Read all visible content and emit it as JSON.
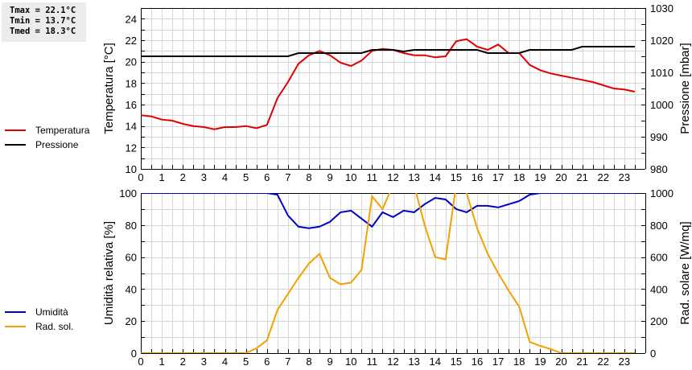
{
  "stats": {
    "tmax": "Tmax = 22.1°C",
    "tmin": "Tmin = 13.7°C",
    "tmed": "Tmed = 18.3°C"
  },
  "legend_top": [
    {
      "label": "Temperatura",
      "color": "#e00000"
    },
    {
      "label": "Pressione",
      "color": "#000000"
    }
  ],
  "legend_bottom": [
    {
      "label": "Umidità",
      "color": "#0000c8"
    },
    {
      "label": "Rad. sol.",
      "color": "#f5a000"
    }
  ],
  "chart_data": [
    {
      "type": "line",
      "title": "",
      "xlabel": "",
      "ylabel": "Temperatura [°C]",
      "y2label": "Pressione [mbar]",
      "xlim": [
        0,
        24
      ],
      "ylim": [
        10,
        25
      ],
      "y2lim": [
        980,
        1030
      ],
      "x_ticks": [
        "0",
        "1",
        "2",
        "3",
        "4",
        "5",
        "6",
        "7",
        "8",
        "9",
        "10",
        "11",
        "12",
        "13",
        "14",
        "15",
        "16",
        "17",
        "18",
        "19",
        "20",
        "21",
        "22",
        "23"
      ],
      "y_ticks": [
        10,
        12,
        14,
        16,
        18,
        20,
        22,
        24
      ],
      "y2_ticks": [
        980,
        990,
        1000,
        1010,
        1020,
        1030
      ],
      "grid": true,
      "x": [
        0,
        0.5,
        1,
        1.5,
        2,
        2.5,
        3,
        3.5,
        4,
        4.5,
        5,
        5.5,
        6,
        6.5,
        7,
        7.5,
        8,
        8.5,
        9,
        9.5,
        10,
        10.5,
        11,
        11.5,
        12,
        12.5,
        13,
        13.5,
        14,
        14.5,
        15,
        15.5,
        16,
        16.5,
        17,
        17.5,
        18,
        18.5,
        19,
        19.5,
        20,
        20.5,
        21,
        21.5,
        22,
        22.5,
        23,
        23.5
      ],
      "series": [
        {
          "name": "Temperatura",
          "axis": "left",
          "color": "#e00000",
          "values": [
            15.0,
            14.9,
            14.6,
            14.5,
            14.2,
            14.0,
            13.9,
            13.7,
            13.9,
            13.9,
            14.0,
            13.8,
            14.1,
            16.6,
            18.1,
            19.8,
            20.6,
            21.0,
            20.6,
            19.9,
            19.6,
            20.1,
            21.0,
            21.2,
            21.1,
            20.8,
            20.6,
            20.6,
            20.4,
            20.5,
            21.9,
            22.1,
            21.4,
            21.1,
            21.6,
            20.8,
            20.8,
            19.7,
            19.2,
            18.9,
            18.7,
            18.5,
            18.3,
            18.1,
            17.8,
            17.5,
            17.4,
            17.2
          ]
        },
        {
          "name": "Pressione",
          "axis": "right",
          "color": "#000000",
          "values": [
            1015,
            1015,
            1015,
            1015,
            1015,
            1015,
            1015,
            1015,
            1015,
            1015,
            1015,
            1015,
            1015,
            1015,
            1015,
            1016,
            1016,
            1016,
            1016,
            1016,
            1016,
            1016,
            1017,
            1017,
            1017,
            1016.5,
            1017,
            1017,
            1017,
            1017,
            1017,
            1017,
            1017,
            1016,
            1016,
            1016,
            1016,
            1017,
            1017,
            1017,
            1017,
            1017,
            1018,
            1018,
            1018,
            1018,
            1018,
            1018
          ]
        }
      ]
    },
    {
      "type": "line",
      "title": "",
      "xlabel": "",
      "ylabel": "Umidità relativa [%]",
      "y2label": "Rad. solare [W/mq]",
      "xlim": [
        0,
        24
      ],
      "ylim": [
        0,
        100
      ],
      "y2lim": [
        0,
        1000
      ],
      "x_ticks": [
        "0",
        "1",
        "2",
        "3",
        "4",
        "5",
        "6",
        "7",
        "8",
        "9",
        "10",
        "11",
        "12",
        "13",
        "14",
        "15",
        "16",
        "17",
        "18",
        "19",
        "20",
        "21",
        "22",
        "23"
      ],
      "y_ticks": [
        0,
        20,
        40,
        60,
        80,
        100
      ],
      "y2_ticks": [
        0,
        200,
        400,
        600,
        800,
        1000
      ],
      "grid": true,
      "x": [
        0,
        0.5,
        1,
        1.5,
        2,
        2.5,
        3,
        3.5,
        4,
        4.5,
        5,
        5.5,
        6,
        6.5,
        7,
        7.5,
        8,
        8.5,
        9,
        9.5,
        10,
        10.5,
        11,
        11.5,
        12,
        12.5,
        13,
        13.5,
        14,
        14.5,
        15,
        15.5,
        16,
        16.5,
        17,
        17.5,
        18,
        18.5,
        19,
        19.5,
        20,
        20.5,
        21,
        21.5,
        22,
        22.5,
        23,
        23.5
      ],
      "series": [
        {
          "name": "Umidità",
          "axis": "left",
          "color": "#0000c8",
          "values": [
            100,
            100,
            100,
            100,
            100,
            100,
            100,
            100,
            100,
            100,
            100,
            100,
            100,
            99,
            86,
            79,
            78,
            79,
            82,
            88,
            89,
            84,
            79,
            88,
            85,
            89,
            88,
            93,
            97,
            96,
            90,
            88,
            92,
            92,
            91,
            93,
            95,
            99,
            100,
            100,
            100,
            100,
            100,
            100,
            100,
            100,
            100,
            100
          ]
        },
        {
          "name": "Rad. sol.",
          "axis": "right",
          "color": "#f5a000",
          "values": [
            0,
            0,
            0,
            0,
            0,
            0,
            0,
            0,
            0,
            0,
            0,
            30,
            80,
            270,
            370,
            470,
            560,
            620,
            470,
            430,
            440,
            520,
            980,
            900,
            1050,
            1050,
            1050,
            800,
            600,
            585,
            1050,
            1000,
            780,
            620,
            500,
            390,
            290,
            70,
            45,
            25,
            0,
            0,
            0,
            0,
            0,
            0,
            0,
            0
          ]
        }
      ]
    }
  ]
}
